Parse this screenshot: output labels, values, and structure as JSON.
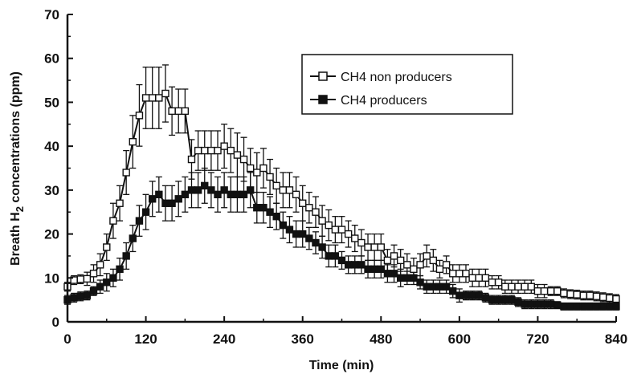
{
  "chart_data": {
    "type": "line",
    "title": "",
    "xlabel": "Time (min)",
    "ylabel_prefix": "Breath H",
    "ylabel_sub": "2",
    "ylabel_suffix": " concentrations (ppm)",
    "xlim": [
      0,
      840
    ],
    "ylim": [
      0,
      70
    ],
    "xticks": [
      0,
      120,
      240,
      360,
      480,
      600,
      720,
      840
    ],
    "yticks": [
      0,
      10,
      20,
      30,
      40,
      50,
      60,
      70
    ],
    "grid": false,
    "legend_position": "top-right",
    "series": [
      {
        "name": "CH4 non producers",
        "marker": "open-square",
        "color": "#111111",
        "x": [
          0,
          10,
          20,
          30,
          40,
          50,
          60,
          70,
          80,
          90,
          100,
          110,
          120,
          130,
          140,
          150,
          160,
          170,
          180,
          190,
          200,
          210,
          220,
          230,
          240,
          250,
          260,
          270,
          280,
          290,
          300,
          310,
          320,
          330,
          340,
          350,
          360,
          370,
          380,
          390,
          400,
          410,
          420,
          430,
          440,
          450,
          460,
          470,
          480,
          490,
          500,
          510,
          520,
          530,
          540,
          550,
          560,
          570,
          580,
          590,
          600,
          610,
          620,
          630,
          640,
          650,
          660,
          670,
          680,
          690,
          700,
          710,
          720,
          730,
          740,
          750,
          760,
          770,
          780,
          790,
          800,
          810,
          820,
          830,
          840
        ],
        "y": [
          8,
          9.5,
          9.7,
          9.8,
          11,
          13,
          17,
          23,
          27,
          34,
          41,
          47,
          51,
          51,
          51,
          52,
          48,
          48,
          48,
          37,
          39,
          39,
          39,
          39,
          40,
          39,
          38,
          37,
          35,
          34,
          35,
          33,
          31,
          30,
          30,
          29,
          27,
          26,
          25,
          23,
          22,
          21,
          21,
          20,
          19,
          18,
          17,
          17,
          17,
          14,
          15,
          14,
          13,
          12,
          13,
          15,
          14,
          12,
          13,
          11,
          11,
          11,
          10,
          10,
          10,
          9,
          9,
          8,
          8,
          8,
          8,
          8,
          7,
          7,
          7,
          7,
          6.5,
          6.3,
          6.2,
          6,
          6,
          5.8,
          5.6,
          5.4,
          5.2
        ],
        "err": [
          1,
          1,
          1,
          1.5,
          2,
          2.5,
          3,
          4,
          4,
          5,
          6,
          7,
          7,
          7,
          7,
          6.5,
          5.5,
          5,
          5,
          4.5,
          4.5,
          4.5,
          4.5,
          4.5,
          5,
          5,
          5,
          5,
          4.5,
          4.5,
          4.5,
          4,
          4,
          4,
          4,
          4,
          4,
          3.5,
          3.5,
          3.5,
          3.5,
          3,
          3,
          3,
          3,
          3,
          3,
          3,
          3,
          2.5,
          2.5,
          2.5,
          2.5,
          2.5,
          2.5,
          2.5,
          2.5,
          2,
          2,
          2,
          2,
          2,
          2,
          2,
          2,
          1.5,
          1.5,
          1.5,
          1.5,
          1.5,
          1.5,
          1.5,
          1.5,
          1.5,
          1,
          1,
          1,
          1,
          1,
          1,
          1,
          1,
          1,
          1,
          1
        ]
      },
      {
        "name": "CH4 producers",
        "marker": "filled-square",
        "color": "#111111",
        "x": [
          0,
          10,
          20,
          30,
          40,
          50,
          60,
          70,
          80,
          90,
          100,
          110,
          120,
          130,
          140,
          150,
          160,
          170,
          180,
          190,
          200,
          210,
          220,
          230,
          240,
          250,
          260,
          270,
          280,
          290,
          300,
          310,
          320,
          330,
          340,
          350,
          360,
          370,
          380,
          390,
          400,
          410,
          420,
          430,
          440,
          450,
          460,
          470,
          480,
          490,
          500,
          510,
          520,
          530,
          540,
          550,
          560,
          570,
          580,
          590,
          600,
          610,
          620,
          630,
          640,
          650,
          660,
          670,
          680,
          690,
          700,
          710,
          720,
          730,
          740,
          750,
          760,
          770,
          780,
          790,
          800,
          810,
          820,
          830,
          840
        ],
        "y": [
          5,
          5.5,
          5.8,
          6,
          7,
          8,
          9,
          10,
          12,
          15,
          19,
          23,
          25,
          28,
          29,
          27,
          27,
          28,
          29,
          30,
          30,
          31,
          30,
          29,
          30,
          29,
          29,
          29,
          30,
          26,
          26,
          25,
          24,
          22,
          21,
          20,
          20,
          19,
          18,
          17,
          15,
          15,
          14,
          13,
          13,
          13,
          12,
          12,
          12,
          11,
          11,
          10,
          10,
          10,
          9,
          8,
          8,
          8,
          8,
          7,
          6,
          6,
          6,
          6,
          5.5,
          5,
          5,
          5,
          5,
          4.5,
          4,
          4,
          4,
          4,
          4,
          3.8,
          3.5,
          3.5,
          3.5,
          3.5,
          3.5,
          3.5,
          3.5,
          3.5,
          3.5
        ],
        "err": [
          1,
          1,
          1,
          1,
          1,
          1.5,
          2,
          2,
          2.5,
          3,
          3,
          3.5,
          4,
          4,
          4,
          4,
          4,
          4,
          4,
          4,
          4,
          4,
          4,
          4,
          4,
          4,
          4,
          4,
          4,
          3.5,
          3.5,
          3.5,
          3,
          3,
          3,
          3,
          3,
          2.5,
          2.5,
          2.5,
          2.5,
          2.5,
          2,
          2,
          2,
          2,
          2,
          2,
          2,
          2,
          2,
          2,
          1.5,
          1.5,
          1.5,
          1.5,
          1.5,
          1.5,
          1.5,
          1.5,
          1.5,
          1,
          1,
          1,
          1,
          1,
          1,
          1,
          1,
          1,
          1,
          1,
          1,
          1,
          1,
          0.8,
          0.8,
          0.8,
          0.8,
          0.8,
          0.8,
          0.8,
          0.8,
          0.8,
          0.8
        ]
      }
    ]
  }
}
